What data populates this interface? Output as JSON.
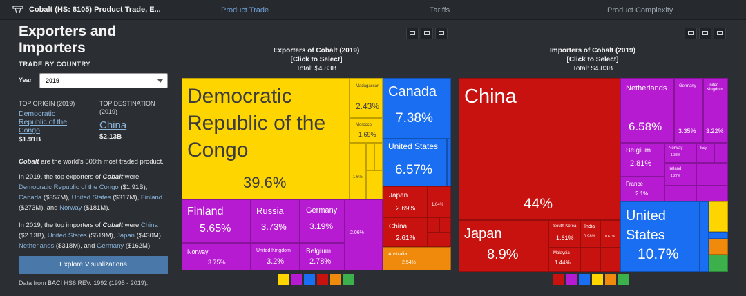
{
  "topbar": {
    "title": "Cobalt (HS: 8105) Product Trade, E...",
    "nav": [
      "Product Trade",
      "Tariffs",
      "Product Complexity"
    ]
  },
  "left": {
    "heading": "Exporters and Importers",
    "subheading": "TRADE BY COUNTRY",
    "year_label": "Year",
    "year_value": "2019",
    "top_origin_header": "TOP ORIGIN (2019)",
    "top_origin_name": "Democratic Republic of the Congo",
    "top_origin_value": "$1.91B",
    "top_dest_header": "TOP DESTINATION (2019)",
    "top_dest_name": "China",
    "top_dest_value": "$2.13B",
    "p1_product": "Cobalt",
    "p1_rest": " are the world's 508th most traded product.",
    "p2_a": "In 2019, the top exporters of ",
    "p2_product": "Cobalt",
    "p2_b": " were ",
    "p2_e1": "Democratic Republic of the Congo",
    "p2_e1v": " ($1.91B), ",
    "p2_e2": "Canada",
    "p2_e2v": " ($357M), ",
    "p2_e3": "United States",
    "p2_e3v": " ($317M), ",
    "p2_e4": "Finland",
    "p2_e4v": " ($273M), and ",
    "p2_e5": "Norway",
    "p2_e5v": " ($181M).",
    "p3_a": "In 2019, the top importers of ",
    "p3_product": "Cobalt",
    "p3_b": " were ",
    "p3_i1": "China",
    "p3_i1v": " ($2.13B), ",
    "p3_i2": "United States",
    "p3_i2v": " ($519M), ",
    "p3_i3": "Japan",
    "p3_i3v": " ($430M), ",
    "p3_i4": "Netherlands",
    "p3_i4v": " ($318M), and ",
    "p3_i5": "Germany",
    "p3_i5v": " ($162M).",
    "button": "Explore Visualizations",
    "src_a": "Data from ",
    "src_link": "BACI",
    "src_b": " HS6 REV. 1992 (1995 - 2019)."
  },
  "exporters": {
    "title": "Exporters of Cobalt (2019)",
    "click": "[Click to Select]",
    "total": "Total: $4.83B",
    "cells": [
      {
        "name": "Democratic Republic of the Congo",
        "value": "39.6%",
        "color": "#ffd500"
      },
      {
        "name": "Madagascar",
        "value": "2.43%",
        "color": "#ffd500"
      },
      {
        "name": "Morocco",
        "value": "1.69%",
        "color": "#ffd500"
      },
      {
        "name": "",
        "value": "1.6%",
        "color": "#ffd500"
      },
      {
        "name": "Canada",
        "value": "7.38%",
        "color": "#1a6ef2"
      },
      {
        "name": "United States",
        "value": "6.57%",
        "color": "#1a6ef2"
      },
      {
        "name": "Finland",
        "value": "5.65%",
        "color": "#b71bd1"
      },
      {
        "name": "Russia",
        "value": "3.73%",
        "color": "#b71bd1"
      },
      {
        "name": "Germany",
        "value": "3.19%",
        "color": "#b71bd1"
      },
      {
        "name": "",
        "value": "2.06%",
        "color": "#b71bd1"
      },
      {
        "name": "Norway",
        "value": "3.75%",
        "color": "#b71bd1"
      },
      {
        "name": "United Kingdom",
        "value": "3.2%",
        "color": "#b71bd1"
      },
      {
        "name": "Belgium",
        "value": "2.78%",
        "color": "#b71bd1"
      },
      {
        "name": "Japan",
        "value": "2.69%",
        "color": "#c8120f"
      },
      {
        "name": "",
        "value": "1.04%",
        "color": "#c8120f"
      },
      {
        "name": "China",
        "value": "2.61%",
        "color": "#c8120f"
      },
      {
        "name": "Australia",
        "value": "2.54%",
        "color": "#f08a0c"
      }
    ]
  },
  "importers": {
    "title": "Importers of Cobalt (2019)",
    "click": "[Click to Select]",
    "total": "Total: $4.83B",
    "cells": [
      {
        "name": "China",
        "value": "44%",
        "color": "#c8120f"
      },
      {
        "name": "Japan",
        "value": "8.9%",
        "color": "#c8120f"
      },
      {
        "name": "South Korea",
        "value": "1.61%",
        "color": "#c8120f"
      },
      {
        "name": "India",
        "value": "0.98%",
        "color": "#c8120f"
      },
      {
        "name": "",
        "value": "0.67%",
        "color": "#c8120f"
      },
      {
        "name": "Malaysia",
        "value": "1.44%",
        "color": "#c8120f"
      },
      {
        "name": "Netherlands",
        "value": "6.58%",
        "color": "#b71bd1"
      },
      {
        "name": "Germany",
        "value": "3.35%",
        "color": "#b71bd1"
      },
      {
        "name": "United Kingdom",
        "value": "3.22%",
        "color": "#b71bd1"
      },
      {
        "name": "Belgium",
        "value": "2.81%",
        "color": "#b71bd1"
      },
      {
        "name": "Norway",
        "value": "1.38%",
        "color": "#b71bd1"
      },
      {
        "name": "Italy",
        "value": "",
        "color": "#b71bd1"
      },
      {
        "name": "Ireland",
        "value": "1.27%",
        "color": "#b71bd1"
      },
      {
        "name": "France",
        "value": "2.1%",
        "color": "#b71bd1"
      },
      {
        "name": "United States",
        "value": "10.7%",
        "color": "#1a6ef2"
      }
    ]
  },
  "legend_colors": {
    "africa": "#ffd500",
    "europe": "#b71bd1",
    "north_america": "#1a6ef2",
    "asia": "#c8120f",
    "oceania": "#f08a0c",
    "south_america": "#3cb04a"
  }
}
